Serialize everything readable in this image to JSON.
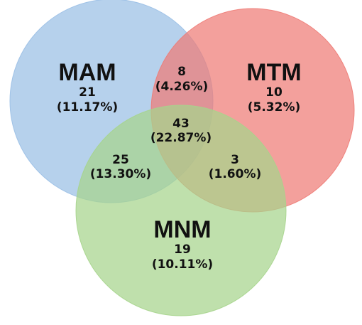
{
  "sets": [
    {
      "id": "mam",
      "label": "MAM",
      "color": "#9ABFE5"
    },
    {
      "id": "mtm",
      "label": "MTM",
      "color": "#EE7B76"
    },
    {
      "id": "mnm",
      "label": "MNM",
      "color": "#A6D48C"
    }
  ],
  "regions": {
    "mam_only": {
      "count": "21",
      "percent": "(11.17%)"
    },
    "mtm_only": {
      "count": "10",
      "percent": "(5.32%)"
    },
    "mnm_only": {
      "count": "19",
      "percent": "(10.11%)"
    },
    "mam_mtm": {
      "count": "8",
      "percent": "(4.26%)"
    },
    "mam_mnm": {
      "count": "25",
      "percent": "(13.30%)"
    },
    "mtm_mnm": {
      "count": "3",
      "percent": "(1.60%)"
    },
    "all_three": {
      "count": "43",
      "percent": "(22.87%)"
    }
  }
}
